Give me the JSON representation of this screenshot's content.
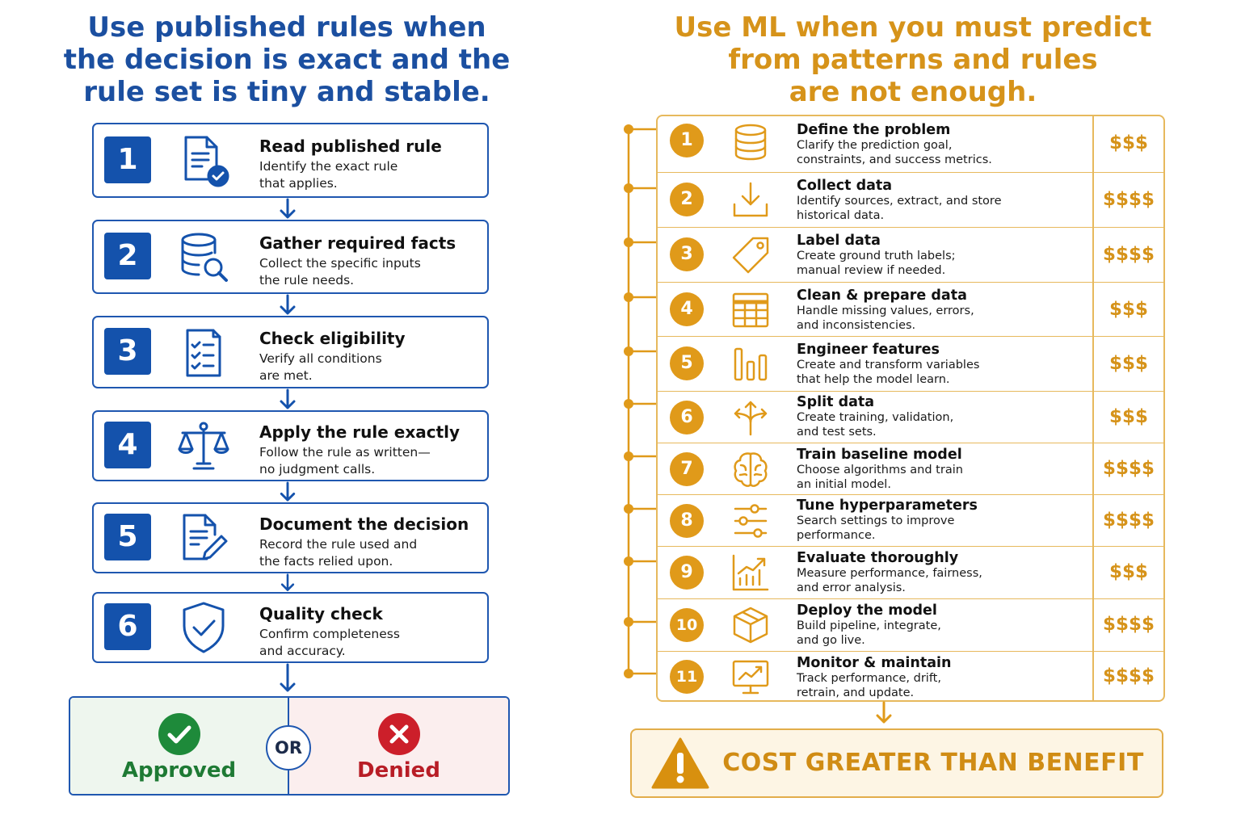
{
  "left": {
    "title_lines": [
      "Use published rules when",
      "the decision is exact and the",
      "rule set is tiny and stable."
    ],
    "steps": [
      {
        "num": "1",
        "title": "Read published rule",
        "desc1": "Identify the exact rule",
        "desc2": "that applies.",
        "icon": "document-check-icon"
      },
      {
        "num": "2",
        "title": "Gather required facts",
        "desc1": "Collect the specific inputs",
        "desc2": "the rule needs.",
        "icon": "database-search-icon"
      },
      {
        "num": "3",
        "title": "Check eligibility",
        "desc1": "Verify all conditions",
        "desc2": "are met.",
        "icon": "checklist-icon"
      },
      {
        "num": "4",
        "title": "Apply the rule exactly",
        "desc1": "Follow the rule as written—",
        "desc2": "no judgment calls.",
        "icon": "scales-icon"
      },
      {
        "num": "5",
        "title": "Document the decision",
        "desc1": "Record the rule used and",
        "desc2": "the facts relied upon.",
        "icon": "document-edit-icon"
      },
      {
        "num": "6",
        "title": "Quality check",
        "desc1": "Confirm completeness",
        "desc2": "and accuracy.",
        "icon": "shield-check-icon"
      }
    ],
    "outcome": {
      "approved": "Approved",
      "or": "OR",
      "denied": "Denied"
    }
  },
  "right": {
    "title_lines": [
      "Use ML when you must predict",
      "from patterns and rules",
      "are not enough."
    ],
    "steps": [
      {
        "num": "1",
        "title": "Define the problem",
        "desc1": "Clarify the prediction goal,",
        "desc2": "constraints, and success metrics.",
        "cost": "$$$",
        "icon": "database-icon"
      },
      {
        "num": "2",
        "title": "Collect data",
        "desc1": "Identify sources, extract, and store",
        "desc2": "historical data.",
        "cost": "$$$$",
        "icon": "download-icon"
      },
      {
        "num": "3",
        "title": "Label data",
        "desc1": "Create ground truth labels;",
        "desc2": "manual review if needed.",
        "cost": "$$$$",
        "icon": "tag-icon"
      },
      {
        "num": "4",
        "title": "Clean & prepare data",
        "desc1": "Handle missing values, errors,",
        "desc2": "and inconsistencies.",
        "cost": "$$$",
        "icon": "table-icon"
      },
      {
        "num": "5",
        "title": "Engineer features",
        "desc1": "Create and transform variables",
        "desc2": "that help the model learn.",
        "cost": "$$$",
        "icon": "bars-icon"
      },
      {
        "num": "6",
        "title": "Split data",
        "desc1": "Create training, validation,",
        "desc2": "and test sets.",
        "cost": "$$$",
        "icon": "split-arrows-icon"
      },
      {
        "num": "7",
        "title": "Train baseline model",
        "desc1": "Choose algorithms and train",
        "desc2": "an initial model.",
        "cost": "$$$$",
        "icon": "brain-icon"
      },
      {
        "num": "8",
        "title": "Tune hyperparameters",
        "desc1": "Search settings to improve",
        "desc2": "performance.",
        "cost": "$$$$",
        "icon": "sliders-icon"
      },
      {
        "num": "9",
        "title": "Evaluate thoroughly",
        "desc1": "Measure performance, fairness,",
        "desc2": "and error analysis.",
        "cost": "$$$",
        "icon": "chart-up-icon"
      },
      {
        "num": "10",
        "title": "Deploy the model",
        "desc1": "Build pipeline, integrate,",
        "desc2": "and go live.",
        "cost": "$$$$",
        "icon": "box-icon"
      },
      {
        "num": "11",
        "title": "Monitor & maintain",
        "desc1": "Track performance, drift,",
        "desc2": "retrain, and update.",
        "cost": "$$$$",
        "icon": "monitor-chart-icon"
      }
    ],
    "warning": "COST GREATER THAN BENEFIT"
  },
  "colors": {
    "blue": "#1452ac",
    "orange": "#e09a1a",
    "approved_green": "#1e8a3a",
    "denied_red": "#cc1f2a"
  }
}
